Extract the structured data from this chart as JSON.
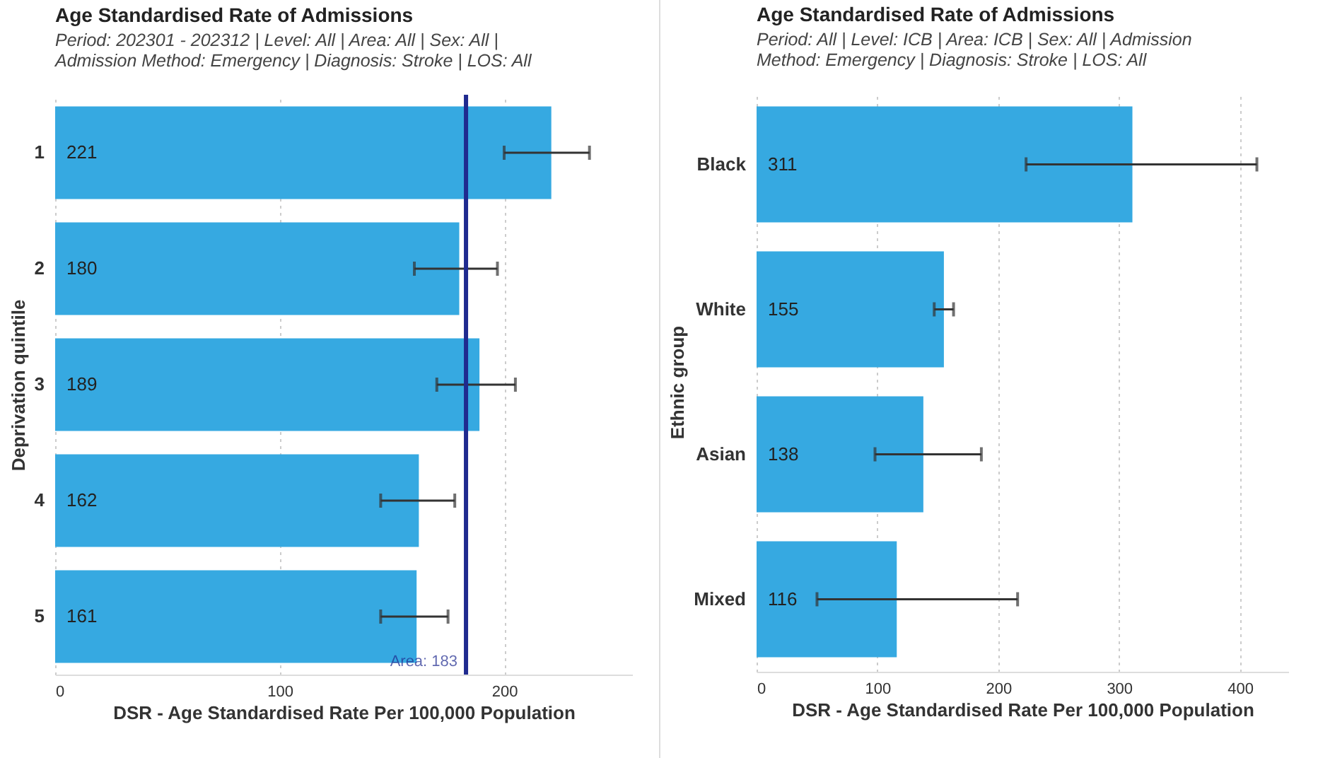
{
  "chart_data": [
    {
      "type": "bar",
      "orientation": "horizontal",
      "title": "Age Standardised Rate of Admissions",
      "subtitle": "Period: 202301 - 202312 | Level: All | Area: All | Sex: All | Admission Method: Emergency | Diagnosis: Stroke | LOS: All",
      "xlabel": "DSR - Age Standardised Rate Per 100,000 Population",
      "ylabel": "Deprivation quintile",
      "categories": [
        "1",
        "2",
        "3",
        "4",
        "5"
      ],
      "values": [
        221,
        180,
        189,
        162,
        161
      ],
      "color": "#36a9e1",
      "errors": [
        [
          200,
          238
        ],
        [
          160,
          197
        ],
        [
          170,
          205
        ],
        [
          145,
          178
        ],
        [
          145,
          175
        ]
      ],
      "xlim": [
        0,
        257
      ],
      "xticks": [
        0,
        100,
        200
      ],
      "grid": "x",
      "data_labels": true,
      "ref_lines": [
        {
          "axis": "x",
          "value": 183,
          "label": "Area: 183",
          "color": "#1f2a8f"
        }
      ]
    },
    {
      "type": "bar",
      "orientation": "horizontal",
      "title": "Age Standardised Rate of Admissions",
      "subtitle": "Period: All | Level: ICB | Area: ICB | Sex: All | Admission Method: Emergency | Diagnosis: Stroke | LOS: All",
      "xlabel": "DSR - Age Standardised Rate Per 100,000 Population",
      "ylabel": "Ethnic group",
      "categories": [
        "Black",
        "White",
        "Asian",
        "Mixed"
      ],
      "values": [
        311,
        155,
        138,
        116
      ],
      "color": "#36a9e1",
      "errors": [
        [
          223,
          414
        ],
        [
          147,
          163
        ],
        [
          98,
          186
        ],
        [
          50,
          216
        ]
      ],
      "xlim": [
        0,
        440
      ],
      "xticks": [
        0,
        100,
        200,
        300,
        400
      ],
      "grid": "x",
      "data_labels": true
    }
  ]
}
